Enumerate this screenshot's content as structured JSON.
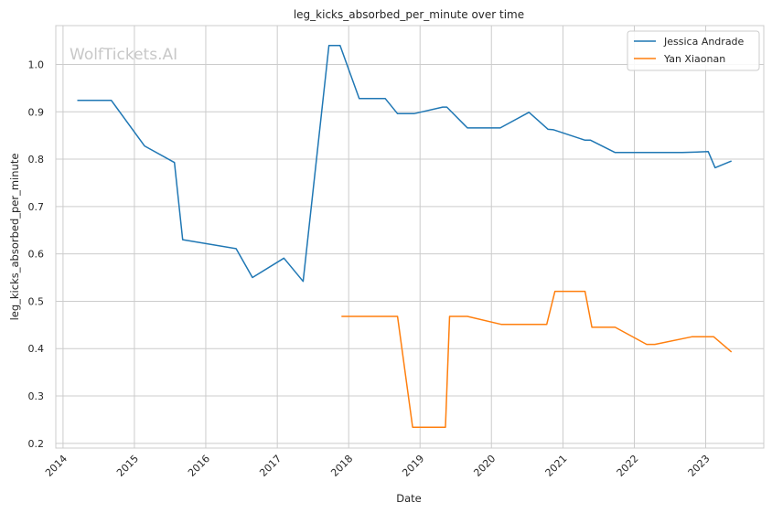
{
  "watermark": "WolfTickets.AI",
  "chart_data": {
    "type": "line",
    "title": "leg_kicks_absorbed_per_minute over time",
    "xlabel": "Date",
    "ylabel": "leg_kicks_absorbed_per_minute",
    "x_ticks": [
      "2014",
      "2015",
      "2016",
      "2017",
      "2018",
      "2019",
      "2020",
      "2021",
      "2022",
      "2023"
    ],
    "y_ticks": [
      "0.2",
      "0.3",
      "0.4",
      "0.5",
      "0.6",
      "0.7",
      "0.8",
      "0.9",
      "1.0"
    ],
    "xlim": [
      "2013-11-25",
      "2023-10-25"
    ],
    "ylim": [
      0.19,
      1.082
    ],
    "grid": true,
    "legend_position": "top-right",
    "series": [
      {
        "name": "Jessica Andrade",
        "color": "#1f77b4",
        "points": [
          [
            "2014-03-15",
            0.924
          ],
          [
            "2014-09-05",
            0.924
          ],
          [
            "2015-02-22",
            0.828
          ],
          [
            "2015-07-25",
            0.793
          ],
          [
            "2015-09-05",
            0.63
          ],
          [
            "2016-06-04",
            0.611
          ],
          [
            "2016-08-27",
            0.55
          ],
          [
            "2017-02-04",
            0.591
          ],
          [
            "2017-05-13",
            0.542
          ],
          [
            "2017-09-22",
            1.04
          ],
          [
            "2017-11-18",
            1.04
          ],
          [
            "2018-02-24",
            0.928
          ],
          [
            "2018-07-07",
            0.928
          ],
          [
            "2018-09-08",
            0.896
          ],
          [
            "2018-12-01",
            0.896
          ],
          [
            "2019-04-27",
            0.91
          ],
          [
            "2019-05-18",
            0.91
          ],
          [
            "2019-08-31",
            0.866
          ],
          [
            "2020-02-15",
            0.866
          ],
          [
            "2020-07-11",
            0.899
          ],
          [
            "2020-10-17",
            0.863
          ],
          [
            "2020-11-14",
            0.862
          ],
          [
            "2021-04-24",
            0.84
          ],
          [
            "2021-05-22",
            0.84
          ],
          [
            "2021-09-25",
            0.814
          ],
          [
            "2022-09-03",
            0.814
          ],
          [
            "2023-01-14",
            0.816
          ],
          [
            "2023-02-18",
            0.782
          ],
          [
            "2023-05-13",
            0.796
          ]
        ]
      },
      {
        "name": "Yan Xiaonan",
        "color": "#ff7f0e",
        "points": [
          [
            "2017-11-25",
            0.468
          ],
          [
            "2018-09-08",
            0.468
          ],
          [
            "2018-11-24",
            0.234
          ],
          [
            "2019-05-11",
            0.234
          ],
          [
            "2019-06-01",
            0.468
          ],
          [
            "2019-08-31",
            0.468
          ],
          [
            "2020-02-22",
            0.451
          ],
          [
            "2020-10-10",
            0.451
          ],
          [
            "2020-11-21",
            0.521
          ],
          [
            "2021-04-24",
            0.521
          ],
          [
            "2021-05-29",
            0.445
          ],
          [
            "2021-09-25",
            0.445
          ],
          [
            "2022-03-05",
            0.409
          ],
          [
            "2022-04-16",
            0.409
          ],
          [
            "2022-10-22",
            0.425
          ],
          [
            "2023-02-11",
            0.425
          ],
          [
            "2023-05-13",
            0.393
          ]
        ]
      }
    ]
  }
}
